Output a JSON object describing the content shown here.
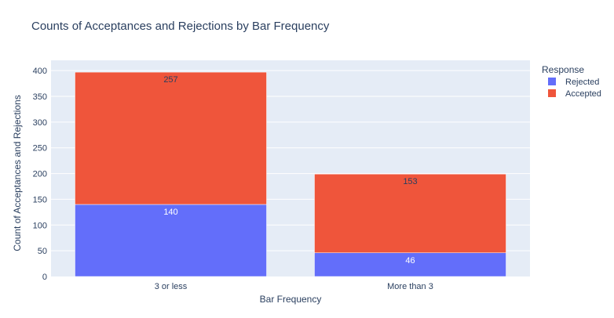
{
  "chart_data": {
    "type": "bar",
    "stacked": true,
    "title": "Counts of Acceptances and Rejections by Bar Frequency",
    "xlabel": "Bar Frequency",
    "ylabel": "Count of Acceptances and Rejections",
    "categories": [
      "3 or less",
      "More than 3"
    ],
    "ylim": [
      0,
      420
    ],
    "yticks": [
      0,
      50,
      100,
      150,
      200,
      250,
      300,
      350,
      400
    ],
    "grid": true,
    "legend": {
      "title": "Response",
      "placement": "right"
    },
    "series": [
      {
        "name": "Rejected",
        "values": [
          140,
          46
        ],
        "color": "#636efa"
      },
      {
        "name": "Accepted",
        "values": [
          257,
          153
        ],
        "color": "#ef553b"
      }
    ],
    "plot_background": "#e5ecf6",
    "grid_color": "#ffffff"
  }
}
